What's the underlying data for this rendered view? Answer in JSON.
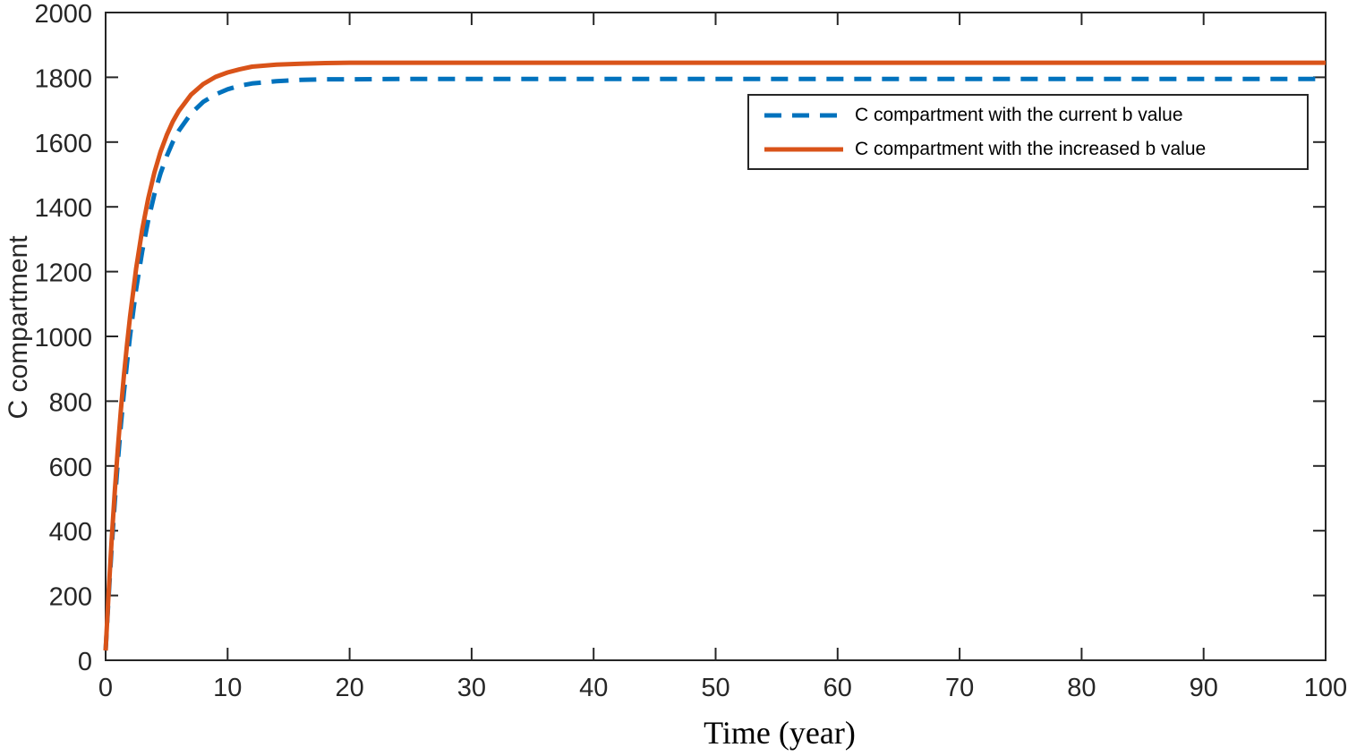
{
  "figure": {
    "background": "#ffffff",
    "axis_color": "#262626",
    "tick_label_color": "#262626"
  },
  "chart_data": {
    "type": "line",
    "title": "",
    "xlabel": "Time (year)",
    "ylabel": "C compartment",
    "xlim": [
      0,
      100
    ],
    "ylim": [
      0,
      2000
    ],
    "xticks": [
      0,
      10,
      20,
      30,
      40,
      50,
      60,
      70,
      80,
      90,
      100
    ],
    "yticks": [
      0,
      200,
      400,
      600,
      800,
      1000,
      1200,
      1400,
      1600,
      1800,
      2000
    ],
    "grid": false,
    "legend": {
      "position": "upper right",
      "border_color": "#262626",
      "background": "#ffffff"
    },
    "series": [
      {
        "name": "C compartment with the current b value",
        "color": "#0072BD",
        "line_style": "dashed",
        "line_width": 5,
        "x": [
          0,
          0.25,
          0.5,
          0.75,
          1,
          1.25,
          1.5,
          1.75,
          2,
          2.5,
          3,
          3.5,
          4,
          4.5,
          5,
          5.5,
          6,
          7,
          8,
          9,
          10,
          11,
          12,
          14,
          16,
          18,
          20,
          25,
          30,
          40,
          50,
          60,
          70,
          80,
          90,
          100
        ],
        "y": [
          30,
          198,
          350,
          487,
          612,
          725,
          826,
          918,
          1002,
          1146,
          1263,
          1360,
          1439,
          1503,
          1556,
          1600,
          1635,
          1688,
          1724,
          1747,
          1763,
          1774,
          1781,
          1788,
          1792,
          1794,
          1794,
          1795,
          1795,
          1795,
          1795,
          1795,
          1795,
          1795,
          1795,
          1795
        ]
      },
      {
        "name": "C compartment with the increased b value",
        "color": "#D95319",
        "line_style": "solid",
        "line_width": 5,
        "x": [
          0,
          0.25,
          0.5,
          0.75,
          1,
          1.25,
          1.5,
          1.75,
          2,
          2.5,
          3,
          3.5,
          4,
          4.5,
          5,
          5.5,
          6,
          7,
          8,
          9,
          10,
          11,
          12,
          14,
          16,
          18,
          20,
          25,
          30,
          40,
          50,
          60,
          70,
          80,
          90,
          100
        ],
        "y": [
          30,
          211,
          374,
          520,
          652,
          771,
          878,
          975,
          1061,
          1210,
          1330,
          1427,
          1506,
          1570,
          1621,
          1663,
          1696,
          1746,
          1779,
          1801,
          1815,
          1825,
          1833,
          1839,
          1842,
          1844,
          1845,
          1845,
          1845,
          1845,
          1845,
          1845,
          1845,
          1845,
          1845,
          1845
        ]
      }
    ]
  }
}
